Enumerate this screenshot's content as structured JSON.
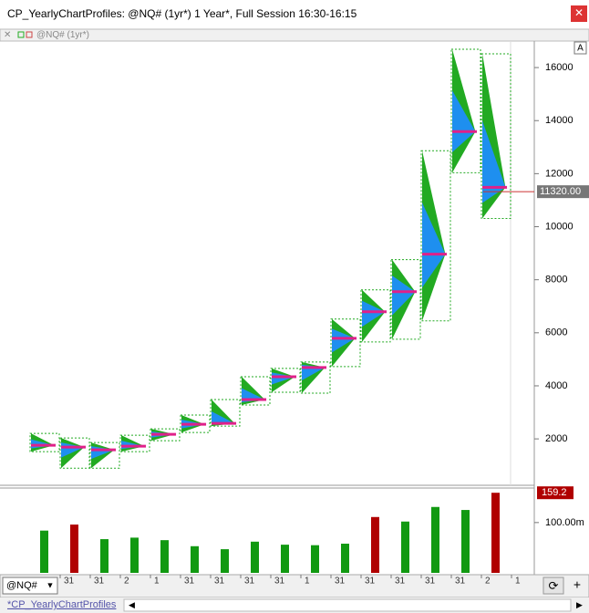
{
  "window": {
    "title": "CP_YearlyChartProfiles: @NQ# (1yr*) 1 Year*, Full Session 16:30-16:15",
    "chart_label": "@NQ# (1yr*)",
    "symbol": "@NQ#",
    "tab": "*CP_YearlyChartProfiles",
    "scale_button": "A"
  },
  "chart_data": [
    {
      "type": "profile",
      "high": [
        2207,
        2034,
        1862,
        2138,
        2379,
        2897,
        3483,
        4345,
        4655,
        4897,
        6517,
        7621,
        8759,
        12862,
        16690,
        16517
      ],
      "low": [
        1517,
        897,
        897,
        1517,
        1931,
        2241,
        2483,
        3276,
        3759,
        3724,
        4724,
        5655,
        5759,
        6448,
        12034,
        10310
      ],
      "poc": [
        1760,
        1690,
        1586,
        1724,
        2172,
        2552,
        2586,
        3483,
        4345,
        4690,
        5793,
        6793,
        7552,
        8966,
        13586,
        11483
      ],
      "colors": {
        "profile": "#22aa22",
        "value_area": "#1e8fef",
        "poc": "#e0208a",
        "box": "#22aa22"
      },
      "last_price": {
        "value": 11320,
        "label": "11320.00"
      },
      "ylim": [
        250,
        17000
      ],
      "yticks": [
        2000,
        4000,
        6000,
        8000,
        10000,
        12000,
        14000,
        16000
      ]
    },
    {
      "type": "bar",
      "categories": [
        "31",
        "31",
        "2",
        "1",
        "31",
        "31",
        "31",
        "31",
        "1",
        "31",
        "31",
        "31",
        "31",
        "31",
        "2",
        "1"
      ],
      "values": [
        84,
        96,
        67,
        70,
        65,
        53,
        47,
        62,
        56,
        55,
        58,
        111,
        102,
        131,
        125,
        159.2
      ],
      "colors": [
        "#119911",
        "#b00000",
        "#119911",
        "#119911",
        "#119911",
        "#119911",
        "#119911",
        "#119911",
        "#119911",
        "#119911",
        "#119911",
        "#b00000",
        "#119911",
        "#119911",
        "#119911",
        "#b00000"
      ],
      "last_value": {
        "value": 159.2,
        "label": "159.2"
      },
      "ylim": [
        0,
        165
      ],
      "yticks": [
        {
          "value": 100,
          "label": "100.00m"
        }
      ]
    }
  ]
}
